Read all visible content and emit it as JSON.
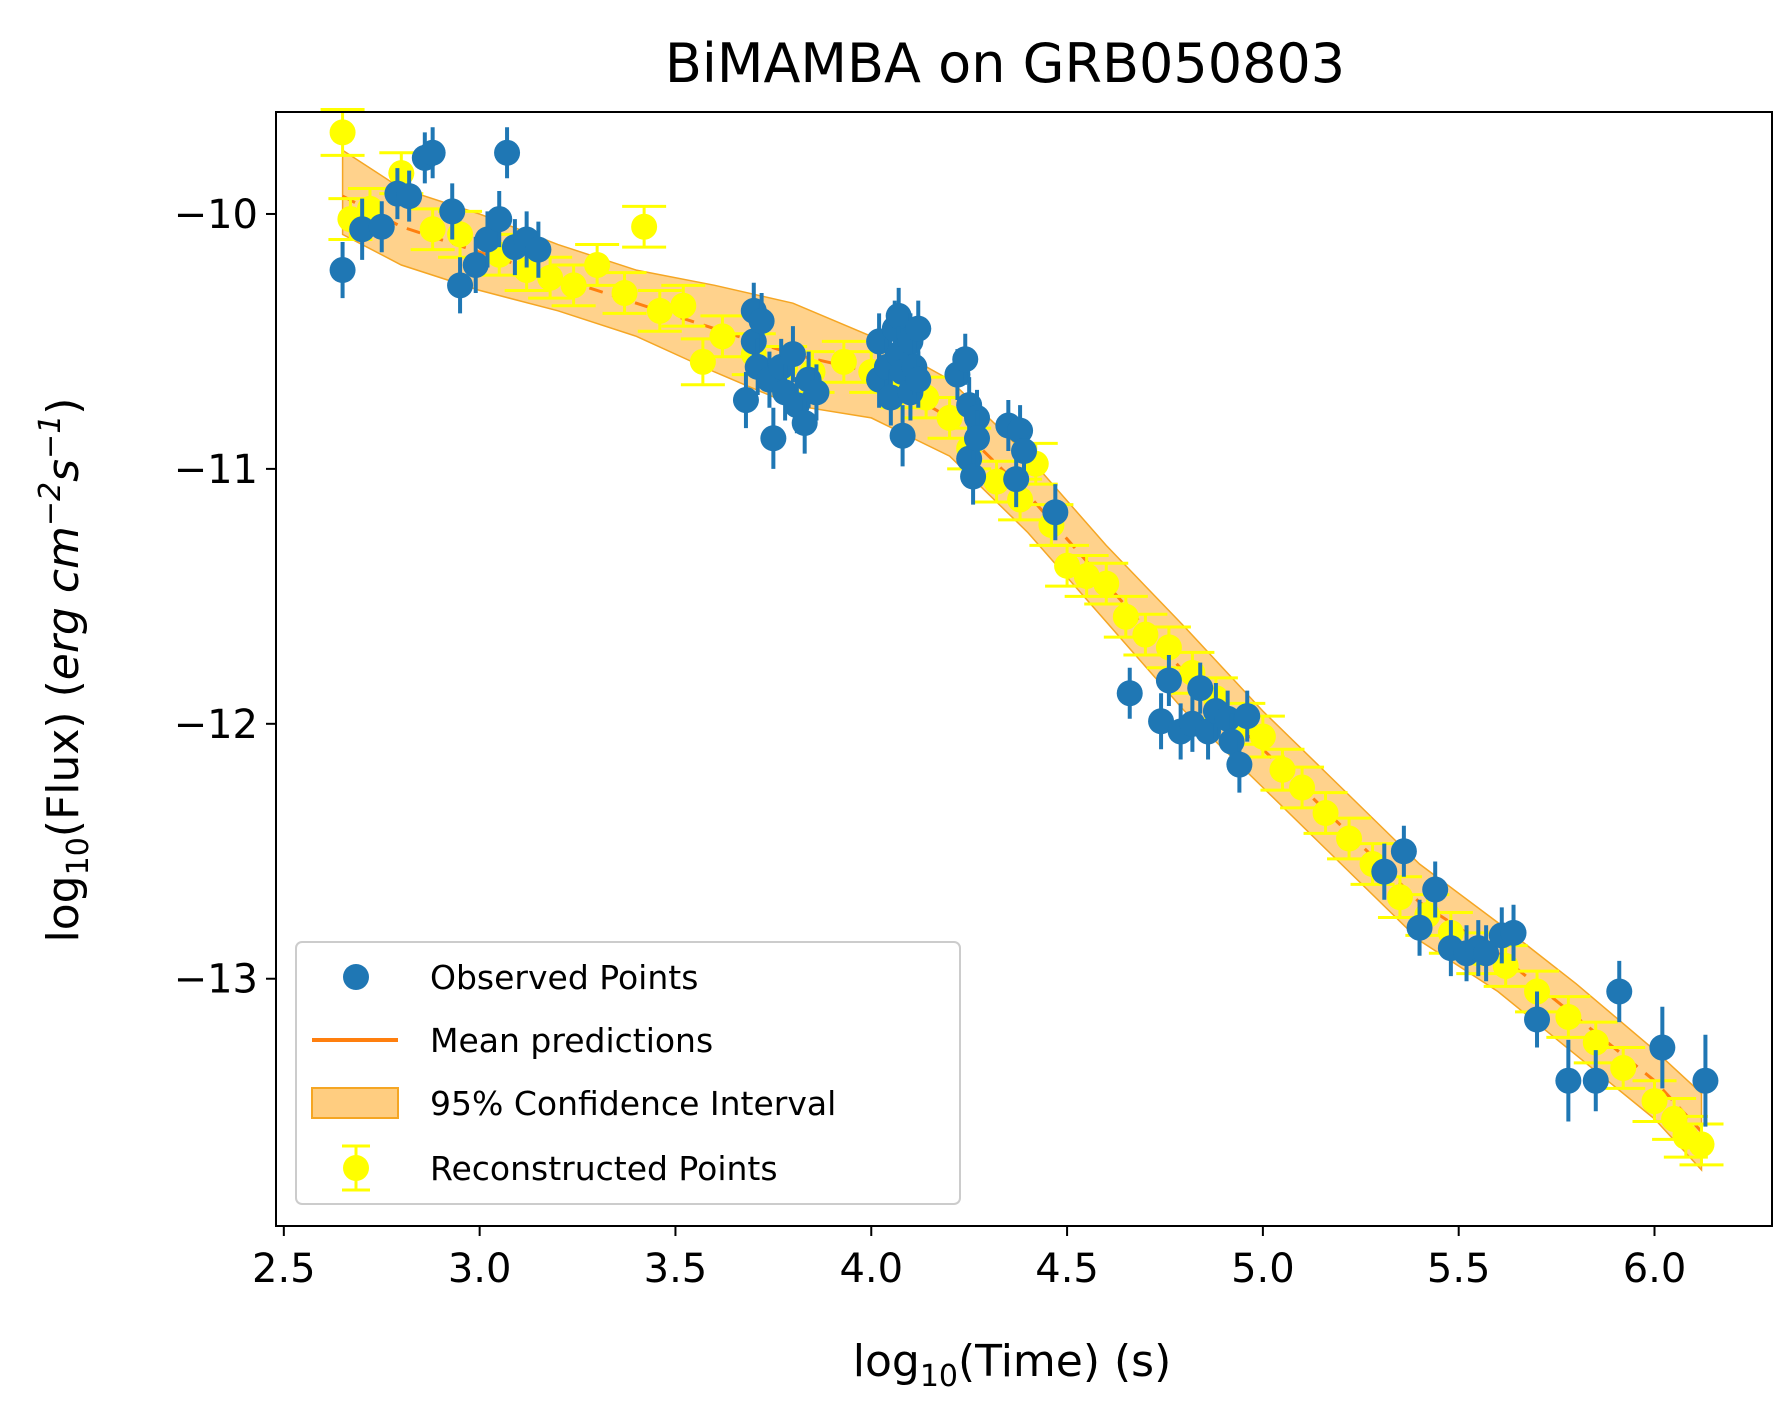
{
  "chart_data": {
    "type": "scatter",
    "title": "BiMAMBA on GRB050803",
    "xlabel": {
      "prefix": "log",
      "sub": "10",
      "suffix": "(Time) (s)"
    },
    "ylabel": {
      "prefix": "log",
      "sub": "10",
      "middle": "(Flux) (",
      "unit_erg": "erg cm",
      "exp1": "−2",
      "unit_s": "s",
      "exp2": "−1",
      "close": ")"
    },
    "xlim": [
      2.48,
      6.3
    ],
    "ylim": [
      -13.97,
      -9.6
    ],
    "xticks": [
      2.5,
      3.0,
      3.5,
      4.0,
      4.5,
      5.0,
      5.5,
      6.0
    ],
    "xtick_labels": [
      "2.5",
      "3.0",
      "3.5",
      "4.0",
      "4.5",
      "5.0",
      "5.5",
      "6.0"
    ],
    "yticks": [
      -10,
      -11,
      -12,
      -13
    ],
    "ytick_labels": [
      "−10",
      "−11",
      "−12",
      "−13"
    ],
    "legend": {
      "position": "lower-left",
      "entries": [
        "Observed Points",
        "Mean predictions",
        "95% Confidence Interval",
        "Reconstructed Points"
      ]
    },
    "colors": {
      "observed": "#1f77b4",
      "mean": "#ff7f0e",
      "ci_fill": "#ffcd80",
      "ci_edge": "#f5a623",
      "reconstructed": "#ffff00"
    },
    "series": [
      {
        "name": "Observed Points",
        "points": [
          [
            2.65,
            -10.22,
            0.11
          ],
          [
            2.7,
            -10.06,
            0.12
          ],
          [
            2.75,
            -10.05,
            0.1
          ],
          [
            2.79,
            -9.92,
            0.1
          ],
          [
            2.82,
            -9.93,
            0.1
          ],
          [
            2.86,
            -9.78,
            0.1
          ],
          [
            2.88,
            -9.76,
            0.1
          ],
          [
            2.93,
            -9.99,
            0.11
          ],
          [
            2.95,
            -10.28,
            0.11
          ],
          [
            2.99,
            -10.2,
            0.11
          ],
          [
            3.02,
            -10.1,
            0.11
          ],
          [
            3.05,
            -10.02,
            0.11
          ],
          [
            3.07,
            -9.76,
            0.1
          ],
          [
            3.09,
            -10.13,
            0.11
          ],
          [
            3.12,
            -10.1,
            0.11
          ],
          [
            3.15,
            -10.14,
            0.11
          ],
          [
            3.68,
            -10.73,
            0.11
          ],
          [
            3.7,
            -10.38,
            0.11
          ],
          [
            3.7,
            -10.5,
            0.11
          ],
          [
            3.71,
            -10.6,
            0.11
          ],
          [
            3.72,
            -10.42,
            0.11
          ],
          [
            3.74,
            -10.65,
            0.11
          ],
          [
            3.75,
            -10.88,
            0.12
          ],
          [
            3.77,
            -10.6,
            0.11
          ],
          [
            3.78,
            -10.7,
            0.11
          ],
          [
            3.8,
            -10.55,
            0.11
          ],
          [
            3.81,
            -10.75,
            0.11
          ],
          [
            3.83,
            -10.82,
            0.12
          ],
          [
            3.84,
            -10.65,
            0.11
          ],
          [
            3.86,
            -10.7,
            0.11
          ],
          [
            4.02,
            -10.5,
            0.11
          ],
          [
            4.02,
            -10.65,
            0.11
          ],
          [
            4.04,
            -10.6,
            0.11
          ],
          [
            4.05,
            -10.72,
            0.11
          ],
          [
            4.06,
            -10.45,
            0.11
          ],
          [
            4.07,
            -10.4,
            0.11
          ],
          [
            4.07,
            -10.55,
            0.11
          ],
          [
            4.08,
            -10.62,
            0.11
          ],
          [
            4.08,
            -10.87,
            0.12
          ],
          [
            4.1,
            -10.5,
            0.11
          ],
          [
            4.1,
            -10.7,
            0.11
          ],
          [
            4.11,
            -10.6,
            0.11
          ],
          [
            4.12,
            -10.45,
            0.11
          ],
          [
            4.12,
            -10.65,
            0.11
          ],
          [
            4.22,
            -10.63,
            0.1
          ],
          [
            4.24,
            -10.57,
            0.1
          ],
          [
            4.25,
            -10.96,
            0.11
          ],
          [
            4.25,
            -10.75,
            0.11
          ],
          [
            4.26,
            -11.03,
            0.11
          ],
          [
            4.27,
            -10.8,
            0.11
          ],
          [
            4.27,
            -10.88,
            0.11
          ],
          [
            4.35,
            -10.83,
            0.1
          ],
          [
            4.37,
            -11.04,
            0.11
          ],
          [
            4.38,
            -10.85,
            0.1
          ],
          [
            4.39,
            -10.93,
            0.1
          ],
          [
            4.47,
            -11.17,
            0.11
          ],
          [
            4.66,
            -11.88,
            0.1
          ],
          [
            4.74,
            -11.99,
            0.11
          ],
          [
            4.76,
            -11.83,
            0.1
          ],
          [
            4.79,
            -12.03,
            0.11
          ],
          [
            4.82,
            -12.0,
            0.11
          ],
          [
            4.84,
            -11.86,
            0.1
          ],
          [
            4.86,
            -12.03,
            0.11
          ],
          [
            4.88,
            -11.95,
            0.11
          ],
          [
            4.91,
            -11.98,
            0.11
          ],
          [
            4.92,
            -12.07,
            0.11
          ],
          [
            4.94,
            -12.16,
            0.11
          ],
          [
            4.96,
            -11.97,
            0.1
          ],
          [
            5.31,
            -12.58,
            0.11
          ],
          [
            5.36,
            -12.5,
            0.1
          ],
          [
            5.4,
            -12.8,
            0.11
          ],
          [
            5.44,
            -12.65,
            0.11
          ],
          [
            5.48,
            -12.88,
            0.11
          ],
          [
            5.52,
            -12.9,
            0.11
          ],
          [
            5.55,
            -12.88,
            0.11
          ],
          [
            5.57,
            -12.9,
            0.11
          ],
          [
            5.61,
            -12.83,
            0.11
          ],
          [
            5.64,
            -12.82,
            0.11
          ],
          [
            5.7,
            -13.16,
            0.11
          ],
          [
            5.78,
            -13.4,
            0.16
          ],
          [
            5.85,
            -13.4,
            0.12
          ],
          [
            5.91,
            -13.05,
            0.12
          ],
          [
            6.02,
            -13.27,
            0.16
          ],
          [
            6.13,
            -13.4,
            0.18
          ]
        ]
      },
      {
        "name": "Reconstructed Points",
        "points": [
          [
            2.65,
            -9.68,
            0.09
          ],
          [
            2.67,
            -10.02,
            0.08
          ],
          [
            2.72,
            -9.98,
            0.08
          ],
          [
            2.8,
            -9.84,
            0.08
          ],
          [
            2.88,
            -10.06,
            0.08
          ],
          [
            2.95,
            -10.08,
            0.09
          ],
          [
            3.05,
            -10.16,
            0.08
          ],
          [
            3.12,
            -10.22,
            0.08
          ],
          [
            3.18,
            -10.25,
            0.08
          ],
          [
            3.24,
            -10.28,
            0.08
          ],
          [
            3.3,
            -10.2,
            0.08
          ],
          [
            3.37,
            -10.31,
            0.08
          ],
          [
            3.42,
            -10.05,
            0.08
          ],
          [
            3.46,
            -10.38,
            0.08
          ],
          [
            3.52,
            -10.36,
            0.08
          ],
          [
            3.57,
            -10.58,
            0.09
          ],
          [
            3.62,
            -10.48,
            0.08
          ],
          [
            3.7,
            -10.55,
            0.08
          ],
          [
            3.78,
            -10.6,
            0.08
          ],
          [
            3.85,
            -10.62,
            0.08
          ],
          [
            3.93,
            -10.58,
            0.08
          ],
          [
            4.0,
            -10.62,
            0.08
          ],
          [
            4.08,
            -10.68,
            0.08
          ],
          [
            4.14,
            -10.72,
            0.08
          ],
          [
            4.2,
            -10.8,
            0.08
          ],
          [
            4.25,
            -10.92,
            0.08
          ],
          [
            4.32,
            -11.05,
            0.08
          ],
          [
            4.38,
            -11.12,
            0.08
          ],
          [
            4.42,
            -10.98,
            0.08
          ],
          [
            4.46,
            -11.22,
            0.08
          ],
          [
            4.5,
            -11.38,
            0.08
          ],
          [
            4.55,
            -11.42,
            0.08
          ],
          [
            4.6,
            -11.45,
            0.08
          ],
          [
            4.65,
            -11.58,
            0.08
          ],
          [
            4.7,
            -11.65,
            0.08
          ],
          [
            4.76,
            -11.7,
            0.08
          ],
          [
            4.82,
            -11.8,
            0.08
          ],
          [
            4.88,
            -11.9,
            0.08
          ],
          [
            4.95,
            -12.0,
            0.08
          ],
          [
            5.0,
            -12.05,
            0.08
          ],
          [
            5.05,
            -12.18,
            0.08
          ],
          [
            5.1,
            -12.25,
            0.08
          ],
          [
            5.16,
            -12.35,
            0.08
          ],
          [
            5.22,
            -12.45,
            0.08
          ],
          [
            5.28,
            -12.55,
            0.08
          ],
          [
            5.35,
            -12.68,
            0.08
          ],
          [
            5.42,
            -12.75,
            0.08
          ],
          [
            5.48,
            -12.82,
            0.08
          ],
          [
            5.55,
            -12.9,
            0.08
          ],
          [
            5.62,
            -12.95,
            0.08
          ],
          [
            5.7,
            -13.05,
            0.08
          ],
          [
            5.78,
            -13.15,
            0.08
          ],
          [
            5.85,
            -13.25,
            0.08
          ],
          [
            5.92,
            -13.35,
            0.08
          ],
          [
            6.0,
            -13.48,
            0.08
          ],
          [
            6.05,
            -13.55,
            0.08
          ],
          [
            6.08,
            -13.62,
            0.08
          ],
          [
            6.12,
            -13.65,
            0.08
          ]
        ]
      },
      {
        "name": "Mean predictions",
        "x": [
          2.65,
          2.8,
          3.0,
          3.2,
          3.4,
          3.6,
          3.8,
          4.0,
          4.2,
          4.4,
          4.6,
          4.8,
          5.0,
          5.2,
          5.4,
          5.6,
          5.8,
          6.0,
          6.12
        ],
        "y": [
          -9.93,
          -10.05,
          -10.15,
          -10.25,
          -10.35,
          -10.45,
          -10.55,
          -10.62,
          -10.8,
          -11.1,
          -11.45,
          -11.8,
          -12.1,
          -12.4,
          -12.7,
          -12.9,
          -13.15,
          -13.4,
          -13.6
        ]
      },
      {
        "name": "95% Confidence Interval",
        "x": [
          2.65,
          2.8,
          3.0,
          3.2,
          3.4,
          3.6,
          3.8,
          4.0,
          4.2,
          4.4,
          4.6,
          4.8,
          5.0,
          5.2,
          5.4,
          5.6,
          5.8,
          6.0,
          6.12
        ],
        "upper": [
          -9.75,
          -9.9,
          -10.0,
          -10.12,
          -10.22,
          -10.28,
          -10.35,
          -10.48,
          -10.65,
          -10.95,
          -11.3,
          -11.62,
          -11.95,
          -12.25,
          -12.55,
          -12.78,
          -13.02,
          -13.28,
          -13.45
        ],
        "lower": [
          -10.08,
          -10.2,
          -10.3,
          -10.38,
          -10.48,
          -10.62,
          -10.75,
          -10.8,
          -10.95,
          -11.25,
          -11.6,
          -11.95,
          -12.25,
          -12.55,
          -12.85,
          -13.05,
          -13.3,
          -13.55,
          -13.75
        ]
      }
    ]
  }
}
